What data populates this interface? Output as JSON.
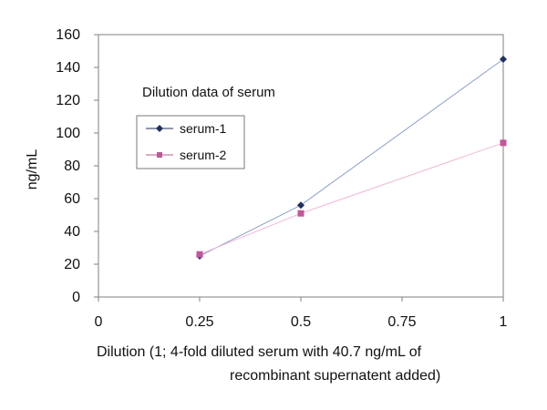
{
  "chart_data": {
    "type": "line",
    "annotation": "Dilution data of serum",
    "xlabel_lines": [
      "Dilution (1; 4-fold diluted serum  with 40.7 ng/mL of",
      "recombinant supernatent added)"
    ],
    "ylabel": "ng/mL",
    "xlim": [
      0,
      1
    ],
    "ylim": [
      0,
      160
    ],
    "x_ticks": [
      0,
      0.25,
      0.5,
      0.75,
      1
    ],
    "x_tick_labels": [
      "0",
      "0.25",
      "0.5",
      "0.75",
      "1"
    ],
    "y_ticks": [
      0,
      20,
      40,
      60,
      80,
      100,
      120,
      140,
      160
    ],
    "y_tick_labels": [
      "0",
      "20",
      "40",
      "60",
      "80",
      "100",
      "120",
      "140",
      "160"
    ],
    "grid": false,
    "legend_position": "upper-left",
    "series": [
      {
        "name": "serum-1",
        "x": [
          0.25,
          0.5,
          1
        ],
        "y": [
          25,
          56,
          145
        ],
        "color": "#1f2f5f",
        "marker": "diamond"
      },
      {
        "name": "serum-2",
        "x": [
          0.25,
          0.5,
          1
        ],
        "y": [
          26,
          51,
          94
        ],
        "color": "#c1579b",
        "marker": "square"
      }
    ]
  }
}
